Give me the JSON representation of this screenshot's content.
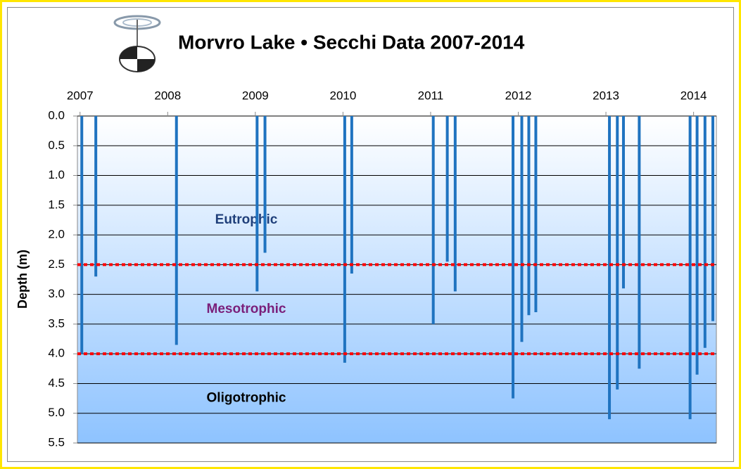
{
  "chart_data": {
    "type": "bar",
    "title": "Morvro Lake • Secchi Data 2007-2014",
    "y_label": "Depth (m)",
    "x": [
      2007.02,
      2007.18,
      2008.1,
      2009.02,
      2009.11,
      2010.02,
      2010.1,
      2011.03,
      2011.19,
      2011.28,
      2011.94,
      2012.04,
      2012.12,
      2012.2,
      2013.04,
      2013.13,
      2013.2,
      2013.38,
      2013.96,
      2014.04,
      2014.13,
      2014.22
    ],
    "values": [
      4.0,
      2.7,
      3.85,
      2.95,
      2.3,
      4.15,
      2.65,
      3.5,
      2.45,
      2.95,
      4.75,
      3.8,
      3.35,
      3.3,
      5.1,
      4.6,
      2.9,
      4.25,
      5.1,
      4.35,
      3.9,
      3.45
    ],
    "color": "#1f73c0",
    "xlim": [
      2006.97,
      2014.26
    ],
    "xticks": [
      2007,
      2008,
      2009,
      2010,
      2011,
      2012,
      2013,
      2014
    ],
    "ylim": [
      0,
      5.5
    ],
    "y_inverted": true,
    "yticks": [
      {
        "value": 0,
        "label": "0.0"
      },
      0.5,
      {
        "value": 1,
        "label": "1.0"
      },
      1.5,
      {
        "value": 2,
        "label": "2.0"
      },
      2.5,
      {
        "value": 3,
        "label": "3.0"
      },
      3.5,
      {
        "value": 4,
        "label": "4.0"
      },
      4.5,
      {
        "value": 5,
        "label": "5.0"
      },
      5.5
    ],
    "grid": true,
    "reference_lines": [
      {
        "value": 2.5,
        "color": "#ff0000"
      },
      {
        "value": 4.0,
        "color": "#ff0000"
      }
    ],
    "annotations": [
      {
        "text": "Eutrophic",
        "color": "#1f3f7a"
      },
      {
        "text": "Mesotrophic",
        "color": "#7a1f7a"
      },
      {
        "text": "Oligotrophic",
        "color": "#000000"
      }
    ]
  }
}
